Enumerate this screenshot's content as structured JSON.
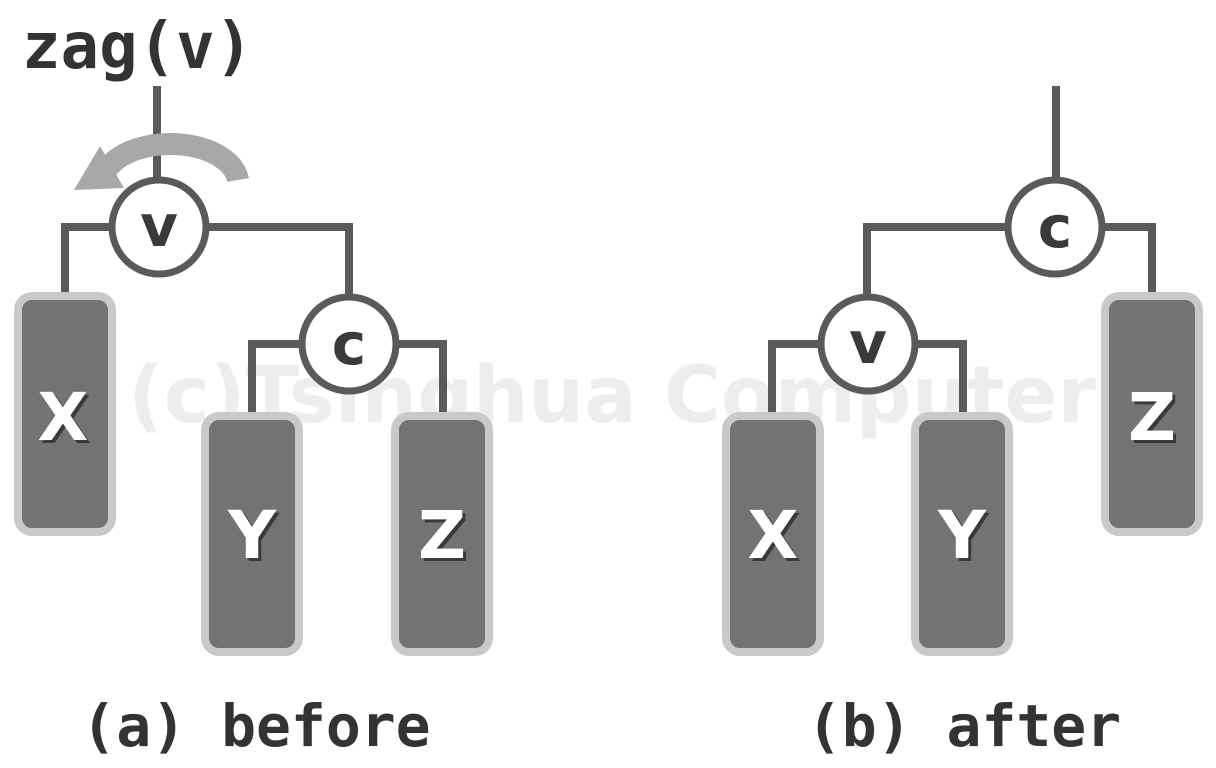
{
  "title": "zag(v)",
  "watermark": "(c)Tsinghua Computer",
  "panels": {
    "before": {
      "caption": "(a) before",
      "nodes": {
        "v": "v",
        "c": "c"
      },
      "subtrees": {
        "X": "X",
        "Y": "Y",
        "Z": "Z"
      }
    },
    "after": {
      "caption": "(b) after",
      "nodes": {
        "c": "c",
        "v": "v"
      },
      "subtrees": {
        "X": "X",
        "Y": "Y",
        "Z": "Z"
      }
    }
  },
  "colors": {
    "edge": "#5a5a5a",
    "subtree_fill": "#737373",
    "subtree_border": "#c9c9c9",
    "arrow": "#a8a8a8"
  }
}
